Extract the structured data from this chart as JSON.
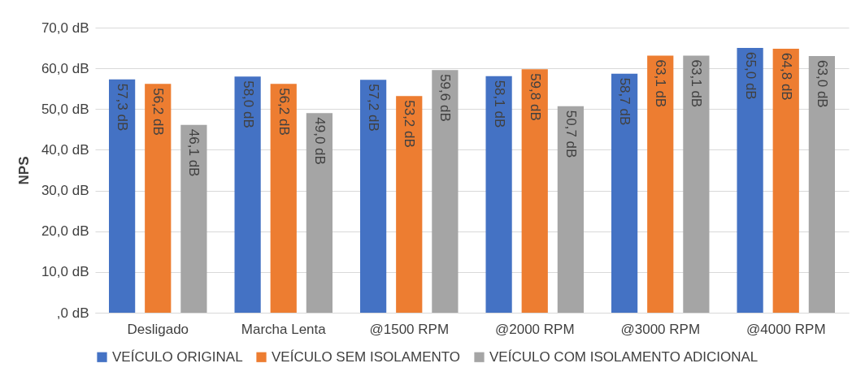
{
  "chart_data": {
    "type": "bar",
    "ylabel": "NPS",
    "categories": [
      "Desligado",
      "Marcha Lenta",
      "@1500 RPM",
      "@2000 RPM",
      "@3000 RPM",
      "@4000 RPM"
    ],
    "series": [
      {
        "name": "VEÍCULO ORIGINAL",
        "color": "#4472c4",
        "values": [
          57.3,
          58.0,
          57.2,
          58.1,
          58.7,
          65.0
        ],
        "value_labels": [
          "57,3 dB",
          "58,0 dB",
          "57,2 dB",
          "58,1 dB",
          "58,7 dB",
          "65,0 dB"
        ]
      },
      {
        "name": "VEÍCULO SEM ISOLAMENTO",
        "color": "#ed7d31",
        "values": [
          56.2,
          56.2,
          53.2,
          59.8,
          63.1,
          64.8
        ],
        "value_labels": [
          "56,2 dB",
          "56,2 dB",
          "53,2 dB",
          "59,8 dB",
          "63,1 dB",
          "64,8 dB"
        ]
      },
      {
        "name": "VEÍCULO COM ISOLAMENTO ADICIONAL",
        "color": "#a5a5a5",
        "values": [
          46.1,
          49.0,
          59.6,
          50.7,
          63.1,
          63.0
        ],
        "value_labels": [
          "46,1 dB",
          "49,0 dB",
          "59,6 dB",
          "50,7 dB",
          "63,1 dB",
          "63,0 dB"
        ]
      }
    ],
    "ylim": [
      0,
      70
    ],
    "yticks": [
      {
        "value": 0,
        "label": ",0 dB"
      },
      {
        "value": 10,
        "label": "10,0 dB"
      },
      {
        "value": 20,
        "label": "20,0 dB"
      },
      {
        "value": 30,
        "label": "30,0 dB"
      },
      {
        "value": 40,
        "label": "40,0 dB"
      },
      {
        "value": 50,
        "label": "50,0 dB"
      },
      {
        "value": 60,
        "label": "60,0 dB"
      },
      {
        "value": 70,
        "label": "70,0 dB"
      }
    ],
    "grid": "y",
    "legend": "bottom"
  }
}
